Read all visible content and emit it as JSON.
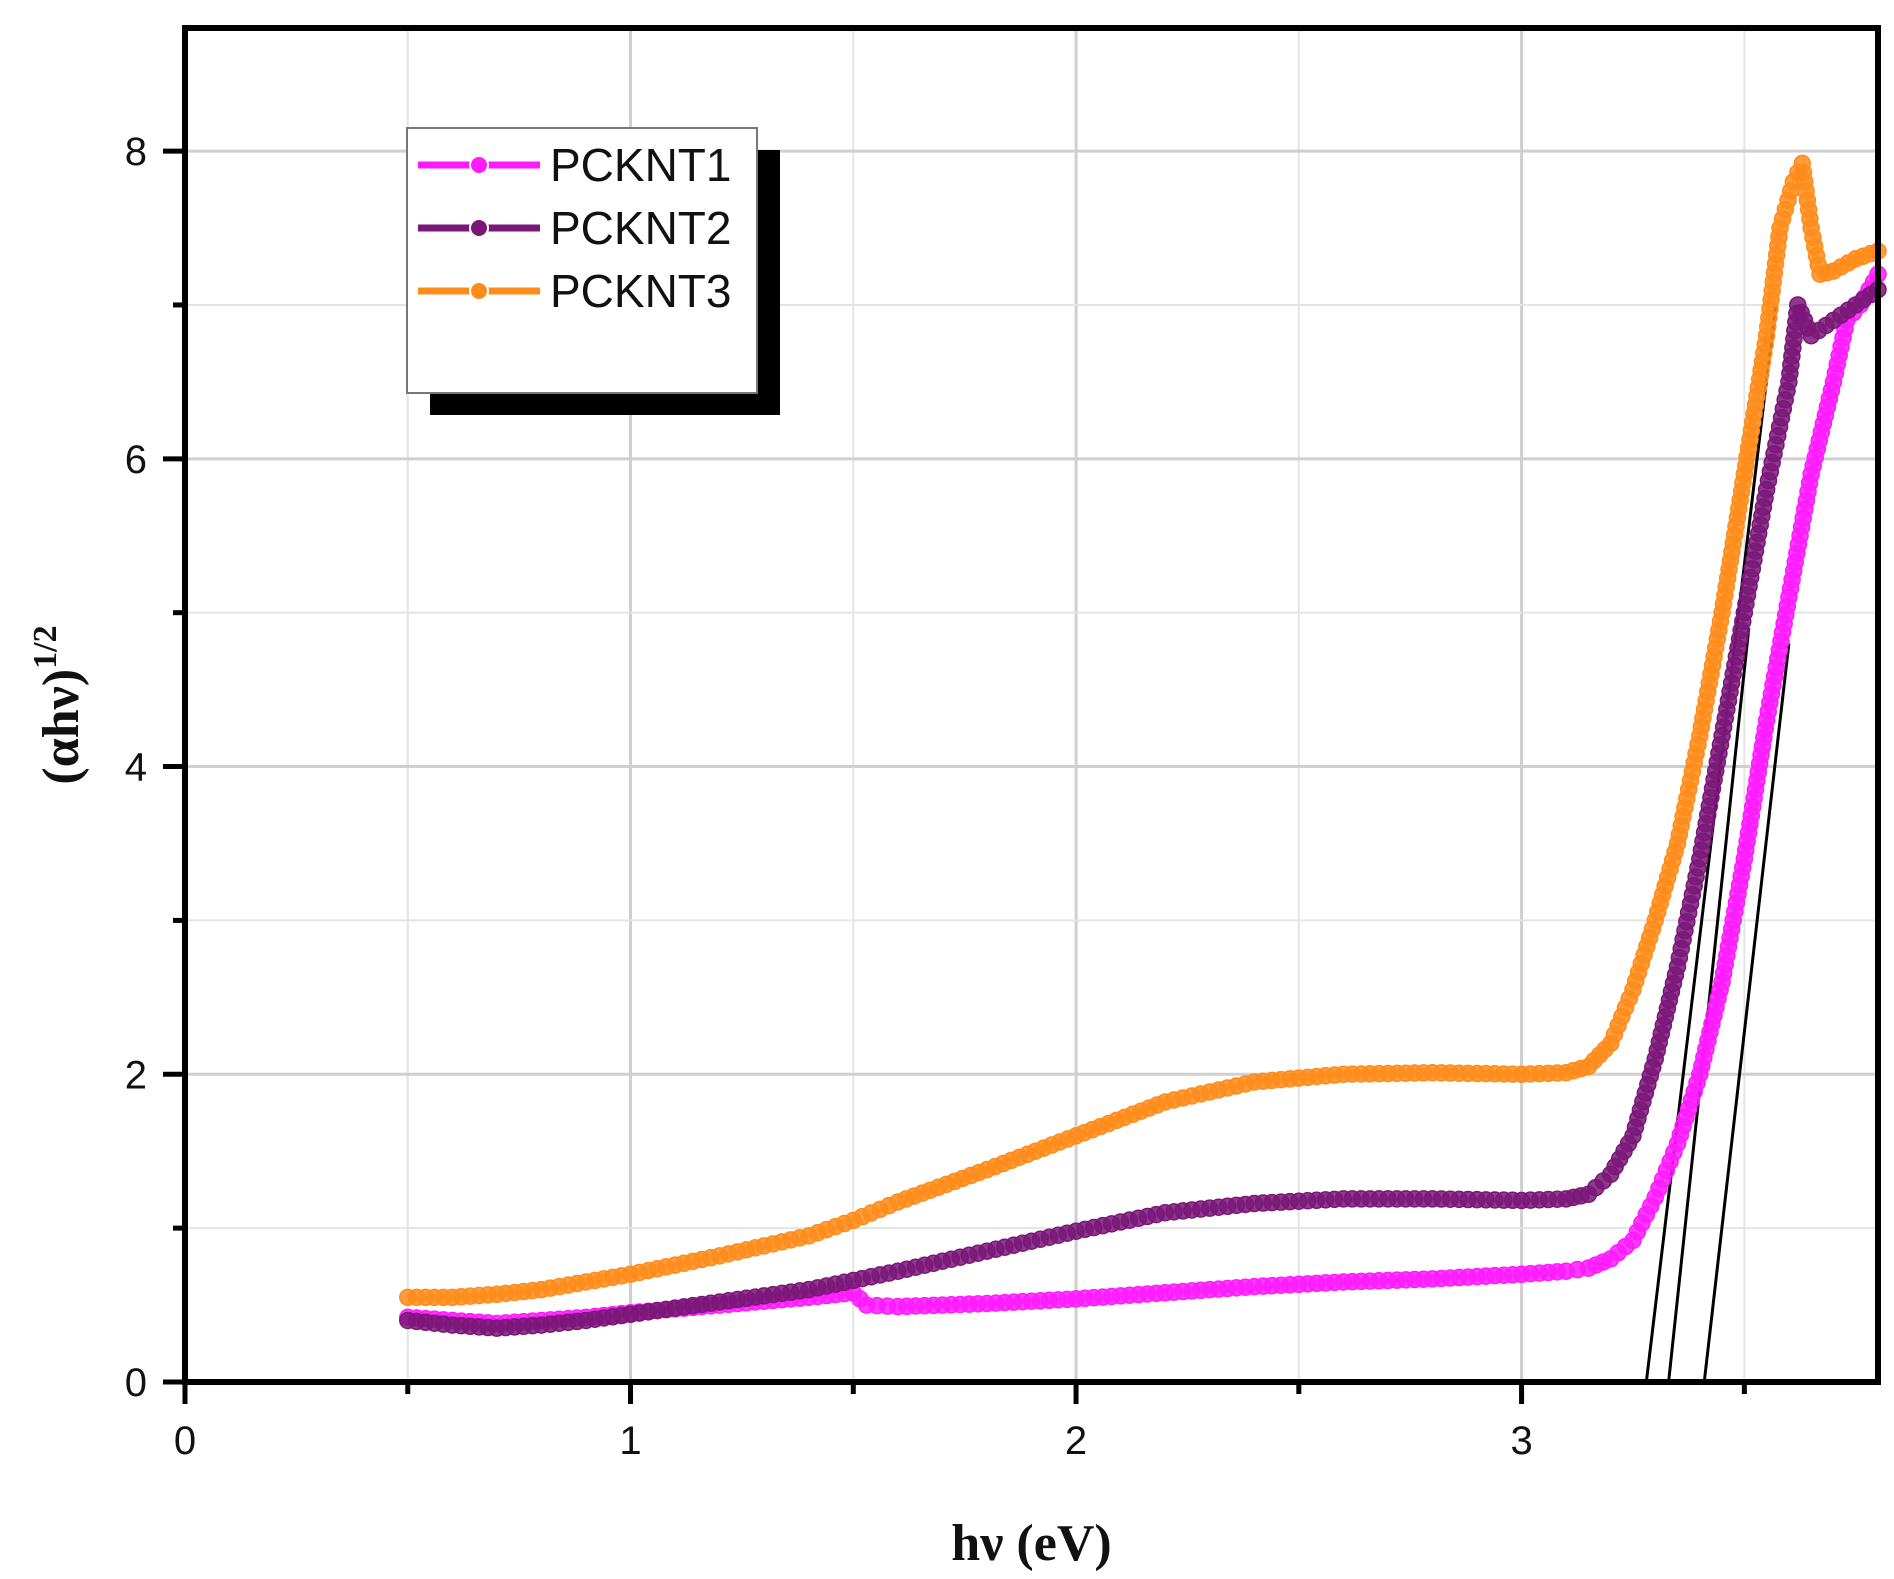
{
  "chart_data": {
    "type": "scatter",
    "title": "",
    "xlabel": "hν (eV)",
    "ylabel_base": "(αhν)",
    "ylabel_exp": "1/2",
    "xlim": [
      0,
      3.8
    ],
    "ylim": [
      0,
      8.8
    ],
    "xticks": [
      0,
      1,
      2,
      3
    ],
    "yticks": [
      0,
      2,
      4,
      6,
      8
    ],
    "xtick_labels": [
      "0",
      "1",
      "2",
      "3"
    ],
    "ytick_labels": [
      "0",
      "2",
      "4",
      "6",
      "8"
    ],
    "grid": true,
    "legend_position": "top-left",
    "series": [
      {
        "name": "PCKNT1",
        "color": "#ff1aff",
        "points": [
          [
            0.5,
            0.42
          ],
          [
            0.6,
            0.4
          ],
          [
            0.7,
            0.38
          ],
          [
            0.8,
            0.4
          ],
          [
            0.9,
            0.42
          ],
          [
            1.0,
            0.45
          ],
          [
            1.2,
            0.5
          ],
          [
            1.4,
            0.55
          ],
          [
            1.5,
            0.58
          ],
          [
            1.53,
            0.5
          ],
          [
            1.6,
            0.49
          ],
          [
            1.8,
            0.51
          ],
          [
            2.0,
            0.54
          ],
          [
            2.2,
            0.58
          ],
          [
            2.4,
            0.62
          ],
          [
            2.6,
            0.65
          ],
          [
            2.8,
            0.67
          ],
          [
            3.0,
            0.7
          ],
          [
            3.1,
            0.72
          ],
          [
            3.15,
            0.74
          ],
          [
            3.2,
            0.8
          ],
          [
            3.25,
            0.92
          ],
          [
            3.3,
            1.2
          ],
          [
            3.35,
            1.55
          ],
          [
            3.4,
            2.0
          ],
          [
            3.45,
            2.6
          ],
          [
            3.5,
            3.4
          ],
          [
            3.55,
            4.3
          ],
          [
            3.6,
            5.1
          ],
          [
            3.65,
            5.9
          ],
          [
            3.7,
            6.5
          ],
          [
            3.73,
            6.9
          ],
          [
            3.76,
            7.0
          ],
          [
            3.8,
            7.2
          ]
        ],
        "fit_line": [
          [
            3.41,
            0.0
          ],
          [
            3.6,
            4.8
          ]
        ]
      },
      {
        "name": "PCKNT2",
        "color": "#7a1778",
        "points": [
          [
            0.5,
            0.4
          ],
          [
            0.6,
            0.37
          ],
          [
            0.7,
            0.35
          ],
          [
            0.8,
            0.37
          ],
          [
            0.9,
            0.4
          ],
          [
            1.0,
            0.44
          ],
          [
            1.2,
            0.52
          ],
          [
            1.4,
            0.6
          ],
          [
            1.5,
            0.66
          ],
          [
            1.6,
            0.72
          ],
          [
            1.8,
            0.85
          ],
          [
            2.0,
            0.98
          ],
          [
            2.2,
            1.1
          ],
          [
            2.4,
            1.16
          ],
          [
            2.6,
            1.19
          ],
          [
            2.8,
            1.19
          ],
          [
            3.0,
            1.18
          ],
          [
            3.1,
            1.19
          ],
          [
            3.15,
            1.22
          ],
          [
            3.2,
            1.35
          ],
          [
            3.25,
            1.6
          ],
          [
            3.3,
            2.1
          ],
          [
            3.35,
            2.7
          ],
          [
            3.4,
            3.4
          ],
          [
            3.45,
            4.2
          ],
          [
            3.5,
            5.0
          ],
          [
            3.55,
            5.8
          ],
          [
            3.6,
            6.5
          ],
          [
            3.62,
            7.0
          ],
          [
            3.65,
            6.8
          ],
          [
            3.7,
            6.9
          ],
          [
            3.75,
            7.0
          ],
          [
            3.8,
            7.1
          ]
        ],
        "fit_line": [
          [
            3.33,
            0.0
          ],
          [
            3.51,
            4.9
          ]
        ]
      },
      {
        "name": "PCKNT3",
        "color": "#ff8c1a",
        "points": [
          [
            0.5,
            0.55
          ],
          [
            0.6,
            0.55
          ],
          [
            0.7,
            0.57
          ],
          [
            0.8,
            0.6
          ],
          [
            0.9,
            0.65
          ],
          [
            1.0,
            0.7
          ],
          [
            1.2,
            0.82
          ],
          [
            1.4,
            0.95
          ],
          [
            1.5,
            1.05
          ],
          [
            1.6,
            1.17
          ],
          [
            1.8,
            1.38
          ],
          [
            2.0,
            1.6
          ],
          [
            2.2,
            1.82
          ],
          [
            2.4,
            1.95
          ],
          [
            2.6,
            2.0
          ],
          [
            2.8,
            2.01
          ],
          [
            3.0,
            2.0
          ],
          [
            3.1,
            2.01
          ],
          [
            3.15,
            2.05
          ],
          [
            3.2,
            2.2
          ],
          [
            3.25,
            2.55
          ],
          [
            3.3,
            3.0
          ],
          [
            3.35,
            3.5
          ],
          [
            3.4,
            4.2
          ],
          [
            3.45,
            5.0
          ],
          [
            3.5,
            5.9
          ],
          [
            3.55,
            6.8
          ],
          [
            3.58,
            7.5
          ],
          [
            3.61,
            7.8
          ],
          [
            3.63,
            7.92
          ],
          [
            3.65,
            7.5
          ],
          [
            3.67,
            7.2
          ],
          [
            3.7,
            7.22
          ],
          [
            3.75,
            7.3
          ],
          [
            3.8,
            7.35
          ]
        ],
        "fit_line": [
          [
            3.28,
            0.0
          ],
          [
            3.57,
            7.0
          ]
        ]
      }
    ]
  }
}
